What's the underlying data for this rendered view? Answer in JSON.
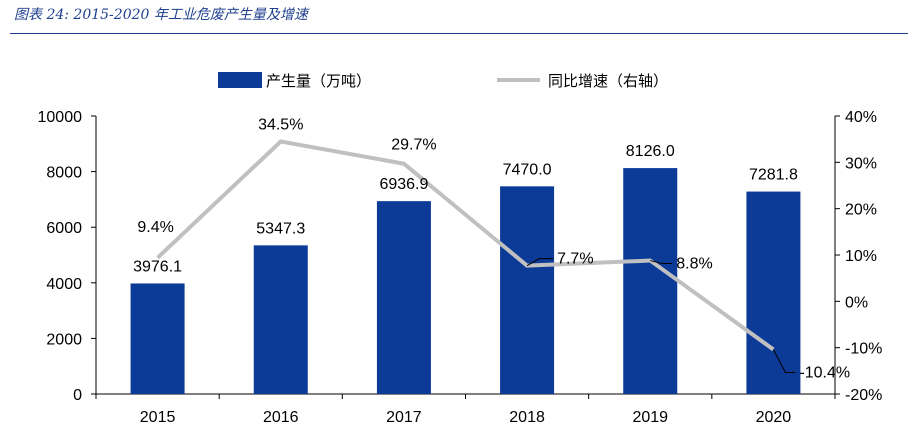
{
  "caption": "图表 24: 2015-2020 年工业危废产生量及增速",
  "colors": {
    "bar": "#0b3a97",
    "line": "#c0c0c0",
    "axis": "#000000",
    "caption": "#1f3f8f"
  },
  "chart_data": {
    "type": "bar",
    "categories": [
      "2015",
      "2016",
      "2017",
      "2018",
      "2019",
      "2020"
    ],
    "series": [
      {
        "name": "产生量（万吨）",
        "type": "bar",
        "axis": "left",
        "values": [
          3976.1,
          5347.3,
          6936.9,
          7470.0,
          8126.0,
          7281.8
        ],
        "labels": [
          "3976.1",
          "5347.3",
          "6936.9",
          "7470.0",
          "8126.0",
          "7281.8"
        ]
      },
      {
        "name": "同比增速（右轴）",
        "type": "line",
        "axis": "right",
        "values": [
          9.4,
          34.5,
          29.7,
          7.7,
          8.8,
          -10.4
        ],
        "labels": [
          "9.4%",
          "34.5%",
          "29.7%",
          "7.7%",
          "8.8%",
          "-10.4%"
        ]
      }
    ],
    "ylim_left": [
      0,
      10000
    ],
    "ylim_right": [
      -20,
      40
    ],
    "left_ticks": [
      "0",
      "2000",
      "4000",
      "6000",
      "8000",
      "10000"
    ],
    "right_ticks": [
      "-20%",
      "-10%",
      "0%",
      "10%",
      "20%",
      "30%",
      "40%"
    ],
    "legend_position": "top"
  }
}
